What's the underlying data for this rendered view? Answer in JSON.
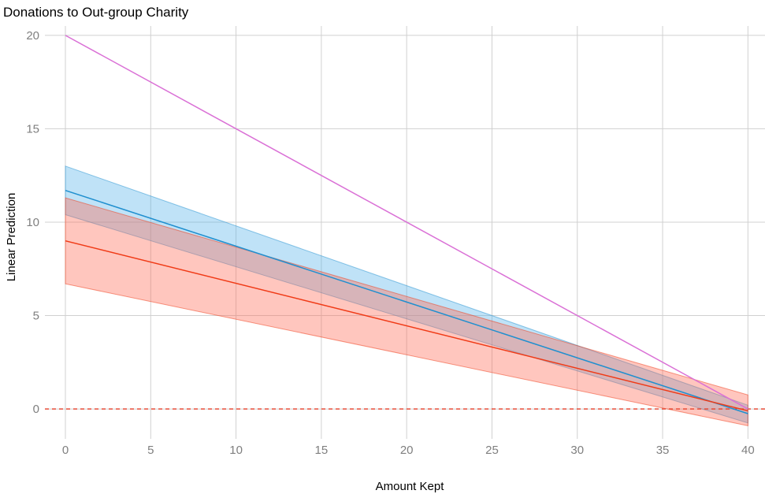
{
  "chart_data": {
    "type": "line",
    "title": "Donations to Out-group Charity",
    "xlabel": "Amount Kept",
    "ylabel": "Linear Prediction",
    "xlim": [
      -1.2,
      41
    ],
    "ylim": [
      -1.6,
      20.5
    ],
    "xticks": [
      0,
      5,
      10,
      15,
      20,
      25,
      30,
      35,
      40
    ],
    "yticks": [
      0,
      5,
      10,
      15,
      20
    ],
    "grid": true,
    "legend": "none",
    "reference_line": {
      "y": 0,
      "style": "dashed",
      "color": "#e8402a"
    },
    "series": [
      {
        "color": "#da70d6",
        "x": [
          0,
          40
        ],
        "y": [
          20,
          0
        ],
        "band": null
      },
      {
        "color": "#1f8fcf",
        "fill": "#56b4e9",
        "x": [
          0,
          40
        ],
        "y": [
          11.7,
          -0.25
        ],
        "ci_lower": [
          10.4,
          -0.75
        ],
        "ci_upper": [
          13.0,
          0.2
        ]
      },
      {
        "color": "#f03a16",
        "fill": "#ff6a55",
        "x": [
          0,
          40
        ],
        "y": [
          9.0,
          -0.1
        ],
        "ci_lower": [
          6.7,
          -0.9
        ],
        "ci_upper": [
          11.3,
          0.75
        ]
      }
    ]
  }
}
